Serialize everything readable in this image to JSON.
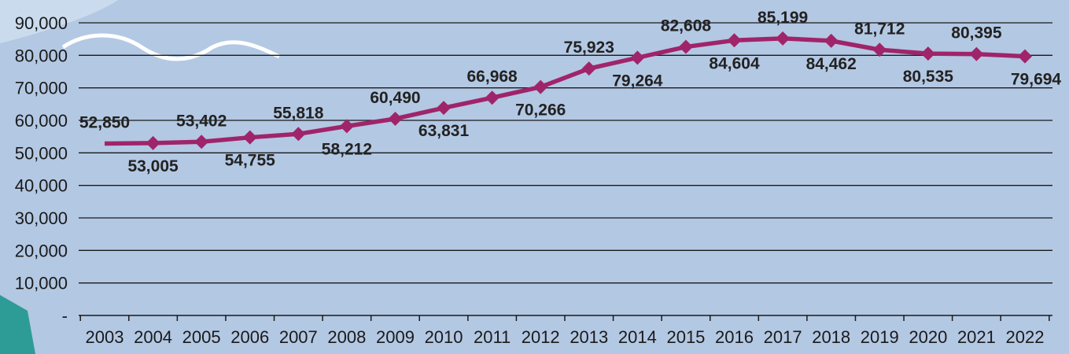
{
  "chart_data": {
    "type": "line",
    "title": "",
    "xlabel": "",
    "ylabel": "",
    "categories": [
      "2003",
      "2004",
      "2005",
      "2006",
      "2007",
      "2008",
      "2009",
      "2010",
      "2011",
      "2012",
      "2013",
      "2014",
      "2015",
      "2016",
      "2017",
      "2018",
      "2019",
      "2020",
      "2021",
      "2022"
    ],
    "series": [
      {
        "values": [
          52850,
          53005,
          53402,
          54755,
          55818,
          58212,
          60490,
          63831,
          66968,
          70266,
          75923,
          79264,
          82608,
          84604,
          85199,
          84462,
          81712,
          80535,
          80395,
          79694
        ],
        "labels": [
          "52,850",
          "53,005",
          "53,402",
          "54,755",
          "55,818",
          "58,212",
          "60,490",
          "63,831",
          "66,968",
          "70,266",
          "75,923",
          "79,264",
          "82,608",
          "84,604",
          "85,199",
          "84,462",
          "81,712",
          "80,535",
          "80,395",
          "79,694"
        ],
        "color": "#a0246a"
      }
    ],
    "yticks": [
      0,
      10000,
      20000,
      30000,
      40000,
      50000,
      60000,
      70000,
      80000,
      90000
    ],
    "ytick_labels": [
      "-",
      "10,000",
      "20,000",
      "30,000",
      "40,000",
      "50,000",
      "60,000",
      "70,000",
      "80,000",
      "90,000"
    ],
    "ylim": [
      0,
      90000
    ],
    "grid": true,
    "legend": "none",
    "colors": {
      "background": "#b3c8e3",
      "gridline": "#1a1a1a",
      "line": "#a0246a",
      "text": "#222222"
    }
  }
}
